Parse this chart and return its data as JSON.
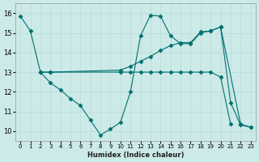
{
  "xlabel": "Humidex (Indice chaleur)",
  "bg_color": "#cceae7",
  "line_color": "#007070",
  "grid_color": "#b8ddd9",
  "xlim": [
    -0.5,
    23.5
  ],
  "ylim": [
    9.5,
    16.5
  ],
  "xticks": [
    0,
    1,
    2,
    3,
    4,
    5,
    6,
    7,
    8,
    9,
    10,
    11,
    12,
    13,
    14,
    15,
    16,
    17,
    18,
    19,
    20,
    21,
    22,
    23
  ],
  "yticks": [
    10,
    11,
    12,
    13,
    14,
    15,
    16
  ],
  "line1_x": [
    0,
    1,
    2,
    3,
    4,
    5,
    6,
    7,
    8,
    9,
    10,
    11,
    12,
    13,
    14,
    15,
    16,
    17,
    18,
    19,
    20,
    21,
    22,
    23
  ],
  "line1_y": [
    15.85,
    15.1,
    13.0,
    12.45,
    12.1,
    11.65,
    11.3,
    10.55,
    9.8,
    10.1,
    10.45,
    12.0,
    14.85,
    15.9,
    15.85,
    14.85,
    14.45,
    14.45,
    15.0,
    15.1,
    15.3,
    11.45,
    10.3,
    10.2
  ],
  "line2_x": [
    2,
    3,
    10,
    11,
    12,
    13,
    14,
    15,
    16,
    17,
    18,
    19,
    20,
    21
  ],
  "line2_y": [
    13.0,
    13.0,
    13.0,
    13.0,
    13.0,
    13.0,
    13.0,
    13.0,
    13.0,
    13.0,
    13.0,
    13.0,
    12.75,
    10.35
  ],
  "line3_x": [
    2,
    3,
    10,
    11,
    12,
    13,
    14,
    15,
    16,
    17,
    18,
    19,
    20,
    22,
    23
  ],
  "line3_y": [
    13.0,
    13.0,
    13.1,
    13.3,
    13.55,
    13.8,
    14.1,
    14.35,
    14.5,
    14.5,
    15.05,
    15.1,
    15.3,
    10.35,
    10.2
  ]
}
